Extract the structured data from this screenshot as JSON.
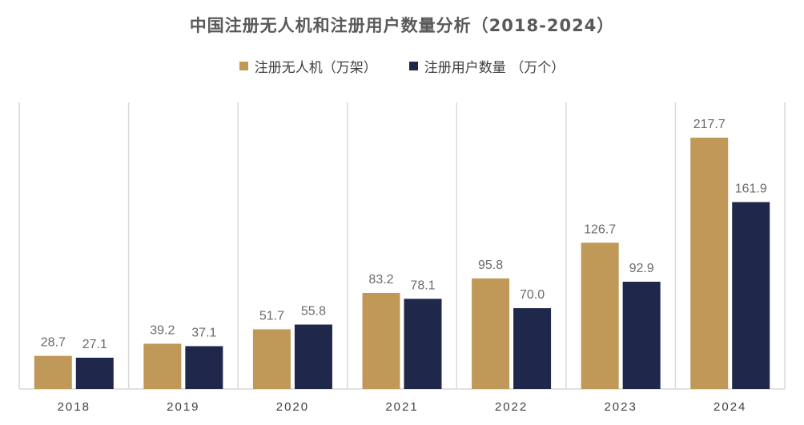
{
  "chart_data": {
    "type": "bar",
    "title": "中国注册无人机和注册用户数量分析（2018-2024）",
    "categories": [
      "2018",
      "2019",
      "2020",
      "2021",
      "2022",
      "2023",
      "2024"
    ],
    "series": [
      {
        "name": "注册无人机（万架）",
        "color": "#c09858",
        "values": [
          28.7,
          39.2,
          51.7,
          83.2,
          95.8,
          126.7,
          217.7
        ],
        "labels": [
          "28.7",
          "39.2",
          "51.7",
          "83.2",
          "95.8",
          "126.7",
          "217.7"
        ]
      },
      {
        "name": "注册用户数量 （万个）",
        "color": "#1f274a",
        "values": [
          27.1,
          37.1,
          55.8,
          78.1,
          70.0,
          92.9,
          161.9
        ],
        "labels": [
          "27.1",
          "37.1",
          "55.8",
          "78.1",
          "70.0",
          "92.9",
          "161.9"
        ]
      }
    ],
    "xlabel": "",
    "ylabel": "",
    "ylim": [
      0,
      230
    ],
    "grid": "vertical category separators",
    "legend": "top-center"
  }
}
